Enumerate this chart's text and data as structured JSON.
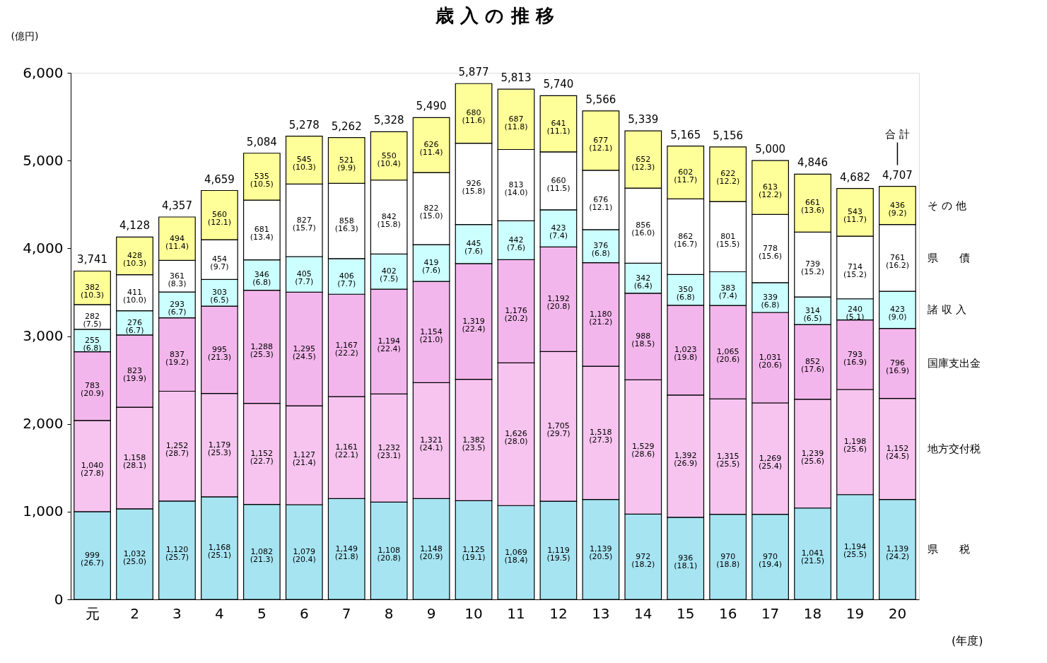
{
  "chart_data": {
    "type": "bar",
    "stacked": true,
    "title": "歳 入 の 推 移",
    "ylabel": "(億円)",
    "xlabel": "(年度)",
    "categories": [
      "元",
      "2",
      "3",
      "4",
      "5",
      "6",
      "7",
      "8",
      "9",
      "10",
      "11",
      "12",
      "13",
      "14",
      "15",
      "16",
      "17",
      "18",
      "19",
      "20"
    ],
    "ylim": [
      0,
      6000
    ],
    "yticks": [
      0,
      {
        "value": 1000,
        "label": "1,000"
      },
      {
        "value": 2000,
        "label": "2,000"
      },
      {
        "value": 3000,
        "label": "3,000"
      },
      {
        "value": 4000,
        "label": "4,000"
      },
      {
        "value": 5000,
        "label": "5,000"
      },
      {
        "value": 6000,
        "label": "6,000"
      }
    ],
    "grid": false,
    "series": [
      {
        "name": "県　　税",
        "color": "#a6e4f2",
        "values": [
          999,
          1032,
          1120,
          1168,
          1082,
          1079,
          1149,
          1108,
          1148,
          1125,
          1069,
          1119,
          1139,
          972,
          936,
          970,
          970,
          1041,
          1194,
          1139
        ],
        "value_labels": [
          "999\n(26.7)",
          "1,032\n(25.0)",
          "1,120\n(25.7)",
          "1,168\n(25.1)",
          "1,082\n(21.3)",
          "1,079\n(20.4)",
          "1,149\n(21.8)",
          "1,108\n(20.8)",
          "1,148\n(20.9)",
          "1,125\n(19.1)",
          "1,069\n(18.4)",
          "1,119\n(19.5)",
          "1,139\n(20.5)",
          "972\n(18.2)",
          "936\n(18.1)",
          "970\n(18.8)",
          "970\n(19.4)",
          "1,041\n(21.5)",
          "1,194\n(25.5)",
          "1,139\n(24.2)"
        ]
      },
      {
        "name": "地方交付税",
        "color": "#f6c4ef",
        "values": [
          1040,
          1158,
          1252,
          1179,
          1152,
          1127,
          1161,
          1232,
          1321,
          1382,
          1626,
          1705,
          1518,
          1529,
          1392,
          1315,
          1269,
          1239,
          1198,
          1152
        ],
        "value_labels": [
          "1,040\n(27.8)",
          "1,158\n(28.1)",
          "1,252\n(28.7)",
          "1,179\n(25.3)",
          "1,152\n(22.7)",
          "1,127\n(21.4)",
          "1,161\n(22.1)",
          "1,232\n(23.1)",
          "1,321\n(24.1)",
          "1,382\n(23.5)",
          "1,626\n(28.0)",
          "1,705\n(29.7)",
          "1,518\n(27.3)",
          "1,529\n(28.6)",
          "1,392\n(26.9)",
          "1,315\n(25.5)",
          "1,269\n(25.4)",
          "1,239\n(25.6)",
          "1,198\n(25.6)",
          "1,152\n(24.5)"
        ]
      },
      {
        "name": "国庫支出金",
        "color": "#f3b6ec",
        "values": [
          783,
          823,
          837,
          995,
          1288,
          1295,
          1167,
          1194,
          1154,
          1319,
          1176,
          1192,
          1180,
          988,
          1023,
          1065,
          1031,
          852,
          793,
          796
        ],
        "value_labels": [
          "783\n(20.9)",
          "823\n(19.9)",
          "837\n(19.2)",
          "995\n(21.3)",
          "1,288\n(25.3)",
          "1,295\n(24.5)",
          "1,167\n(22.2)",
          "1,194\n(22.4)",
          "1,154\n(21.0)",
          "1,319\n(22.4)",
          "1,176\n(20.2)",
          "1,192\n(20.8)",
          "1,180\n(21.2)",
          "988\n(18.5)",
          "1,023\n(19.8)",
          "1,065\n(20.6)",
          "1,031\n(20.6)",
          "852\n(17.6)",
          "793\n(16.9)",
          "796\n(16.9)"
        ]
      },
      {
        "name": "諸 収 入",
        "color": "#ccffff",
        "values": [
          255,
          276,
          293,
          303,
          346,
          405,
          406,
          402,
          419,
          445,
          442,
          423,
          376,
          342,
          350,
          383,
          339,
          314,
          240,
          423
        ],
        "value_labels": [
          "255\n(6.8)",
          "276\n(6.7)",
          "293\n(6.7)",
          "303\n(6.5)",
          "346\n(6.8)",
          "405\n(7.7)",
          "406\n(7.7)",
          "402\n(7.5)",
          "419\n(7.6)",
          "445\n(7.6)",
          "442\n(7.6)",
          "423\n(7.4)",
          "376\n(6.8)",
          "342\n(6.4)",
          "350\n(6.8)",
          "383\n(7.4)",
          "339\n(6.8)",
          "314\n(6.5)",
          "240\n(5.1)",
          "423\n(9.0)"
        ]
      },
      {
        "name": "県　　債",
        "color": "#ffffff",
        "values": [
          282,
          411,
          361,
          454,
          681,
          827,
          858,
          842,
          822,
          926,
          813,
          660,
          676,
          856,
          862,
          801,
          778,
          739,
          714,
          761
        ],
        "value_labels": [
          "282\n(7.5)",
          "411\n(10.0)",
          "361\n(8.3)",
          "454\n(9.7)",
          "681\n(13.4)",
          "827\n(15.7)",
          "858\n(16.3)",
          "842\n(15.8)",
          "822\n(15.0)",
          "926\n(15.8)",
          "813\n(14.0)",
          "660\n(11.5)",
          "676\n(12.1)",
          "856\n(16.0)",
          "862\n(16.7)",
          "801\n(15.5)",
          "778\n(15.6)",
          "739\n(15.2)",
          "714\n(15.2)",
          "761\n(16.2)"
        ]
      },
      {
        "name": "そ の 他",
        "color": "#ffff99",
        "values": [
          382,
          428,
          494,
          560,
          535,
          545,
          521,
          550,
          626,
          680,
          687,
          641,
          677,
          652,
          602,
          622,
          613,
          661,
          543,
          436
        ],
        "value_labels": [
          "382\n(10.3)",
          "428\n(10.3)",
          "494\n(11.4)",
          "560\n(12.1)",
          "535\n(10.5)",
          "545\n(10.3)",
          "521\n(9.9)",
          "550\n(10.4)",
          "626\n(11.4)",
          "680\n(11.6)",
          "687\n(11.8)",
          "641\n(11.1)",
          "677\n(12.1)",
          "652\n(12.3)",
          "602\n(11.7)",
          "622\n(12.2)",
          "613\n(12.2)",
          "661\n(13.6)",
          "543\n(11.7)",
          "436\n(9.2)"
        ]
      }
    ],
    "totals": [
      "3,741",
      "4,128",
      "4,357",
      "4,659",
      "5,084",
      "5,278",
      "5,262",
      "5,328",
      "5,490",
      "5,877",
      "5,813",
      "5,740",
      "5,566",
      "5,339",
      "5,165",
      "5,156",
      "5,000",
      "4,846",
      "4,682",
      "4,707"
    ],
    "annotations": [
      "合 計"
    ]
  }
}
